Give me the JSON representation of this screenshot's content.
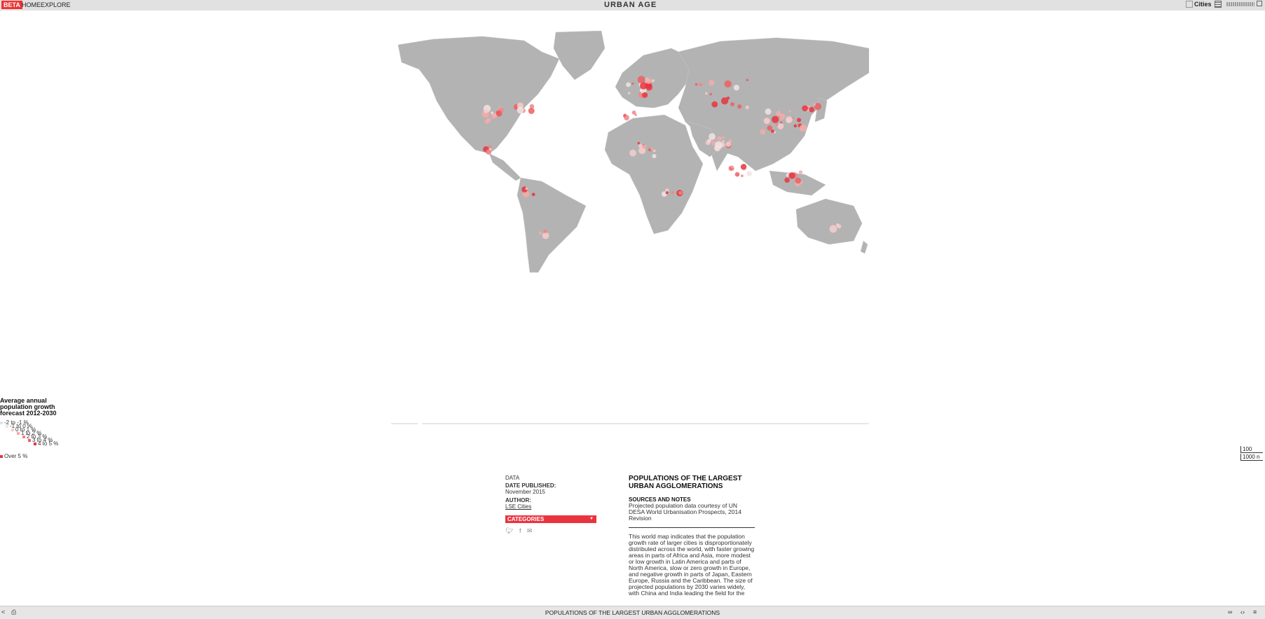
{
  "topbar": {
    "beta_label": "BETA",
    "nav": [
      "HOME",
      "EXPLORE"
    ],
    "brand": "URBAN AGE",
    "cities_label": "Cities"
  },
  "map": {
    "land_color": "#b3b3b3",
    "point_color": "#e9343e"
  },
  "legend": {
    "title": "Average annual population growth forecast 2012-2030",
    "items": [
      "-2 to -1 %",
      "-1 to 0 %",
      "0 to 1 %",
      "1 to 2 %",
      "2 to 3 %",
      "3 to 4 %",
      "4 to 5 %",
      "Over 5 %"
    ],
    "colors": [
      "#dfe3ef",
      "#f2e3e3",
      "#f7cccc",
      "#f5aaaa",
      "#f08585",
      "#ec5f62",
      "#e9343e",
      "#e9343e"
    ]
  },
  "scale": {
    "small": "100",
    "large": "1000 n"
  },
  "meta": {
    "type": "DATA",
    "date_label": "DATE PUBLISHED:",
    "date_value": "November 2015",
    "author_label": "AUTHOR:",
    "author_value": "LSE Cities",
    "categories_label": "CATEGORIES",
    "share_icons": [
      "twitter-icon",
      "facebook-icon",
      "mail-icon"
    ]
  },
  "article": {
    "title": "POPULATIONS OF THE LARGEST URBAN AGGLOMERATIONS",
    "sources_title": "SOURCES AND NOTES",
    "sources_text": "Projected population data courtesy of UN DESA World Urbanisation Prospects, 2014 Revision",
    "body": "This world map indicates that the population growth rate of larger cities is disproportionately distributed across the world, with faster growing areas in parts of Africa and Asia, more modest or low growth in Latin America and parts of North America, slow or zero growth in Europe, and negative growth in parts of Japan, Eastern Europe, Russia and the Caribbean. The size of projected populations by 2030 varies widely, with China and India leading the field for the"
  },
  "bottombar": {
    "title": "POPULATIONS OF THE LARGEST URBAN AGGLOMERATIONS"
  }
}
